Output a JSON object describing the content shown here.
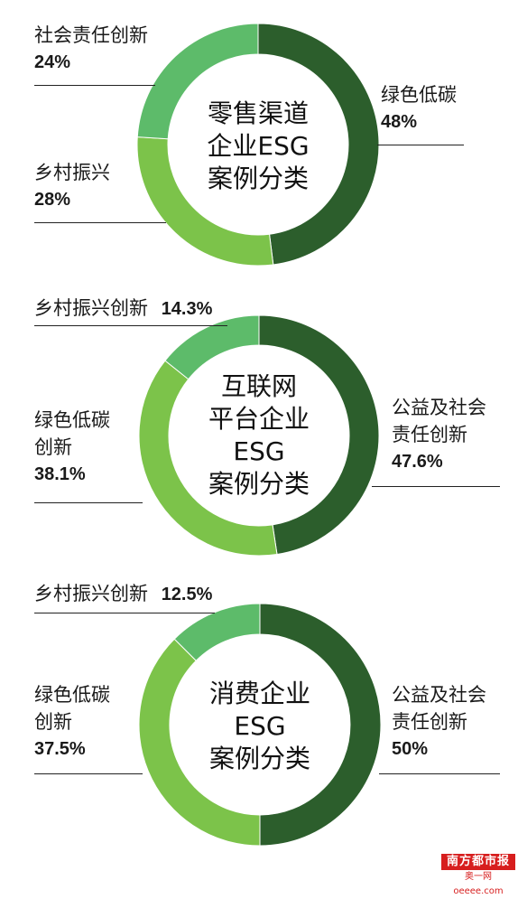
{
  "colors": {
    "dark": "#2c5e2c",
    "mid": "#7cc34a",
    "light": "#5dbb6a"
  },
  "chart_data": [
    {
      "type": "pie",
      "title": "零售渠道企业ESG案例分类",
      "title_lines": [
        "零售渠道",
        "企业ESG",
        "案例分类"
      ],
      "slices": [
        {
          "label": "绿色低碳",
          "label_lines": [
            "绿色低碳"
          ],
          "value": 48,
          "value_text": "48%",
          "color": "#2c5e2c"
        },
        {
          "label": "乡村振兴",
          "label_lines": [
            "乡村振兴"
          ],
          "value": 28,
          "value_text": "28%",
          "color": "#7cc34a"
        },
        {
          "label": "社会责任创新",
          "label_lines": [
            "社会责任创新"
          ],
          "value": 24,
          "value_text": "24%",
          "color": "#5dbb6a"
        }
      ]
    },
    {
      "type": "pie",
      "title": "互联网平台企业ESG案例分类",
      "title_lines": [
        "互联网",
        "平台企业",
        "ESG",
        "案例分类"
      ],
      "slices": [
        {
          "label": "公益及社会责任创新",
          "label_lines": [
            "公益及社会",
            "责任创新"
          ],
          "value": 47.6,
          "value_text": "47.6%",
          "color": "#2c5e2c"
        },
        {
          "label": "绿色低碳创新",
          "label_lines": [
            "绿色低碳",
            "创新"
          ],
          "value": 38.1,
          "value_text": "38.1%",
          "color": "#7cc34a"
        },
        {
          "label": "乡村振兴创新",
          "label_lines": [
            "乡村振兴创新"
          ],
          "value": 14.3,
          "value_text": "14.3%",
          "color": "#5dbb6a"
        }
      ]
    },
    {
      "type": "pie",
      "title": "消费企业ESG案例分类",
      "title_lines": [
        "消费企业",
        "ESG",
        "案例分类"
      ],
      "slices": [
        {
          "label": "公益及社会责任创新",
          "label_lines": [
            "公益及社会",
            "责任创新"
          ],
          "value": 50,
          "value_text": "50%",
          "color": "#2c5e2c"
        },
        {
          "label": "绿色低碳创新",
          "label_lines": [
            "绿色低碳",
            "创新"
          ],
          "value": 37.5,
          "value_text": "37.5%",
          "color": "#7cc34a"
        },
        {
          "label": "乡村振兴创新",
          "label_lines": [
            "乡村振兴创新"
          ],
          "value": 12.5,
          "value_text": "12.5%",
          "color": "#5dbb6a"
        }
      ]
    }
  ],
  "brand": {
    "name": "南方都市报",
    "site": "奥一网oeeee.com"
  }
}
